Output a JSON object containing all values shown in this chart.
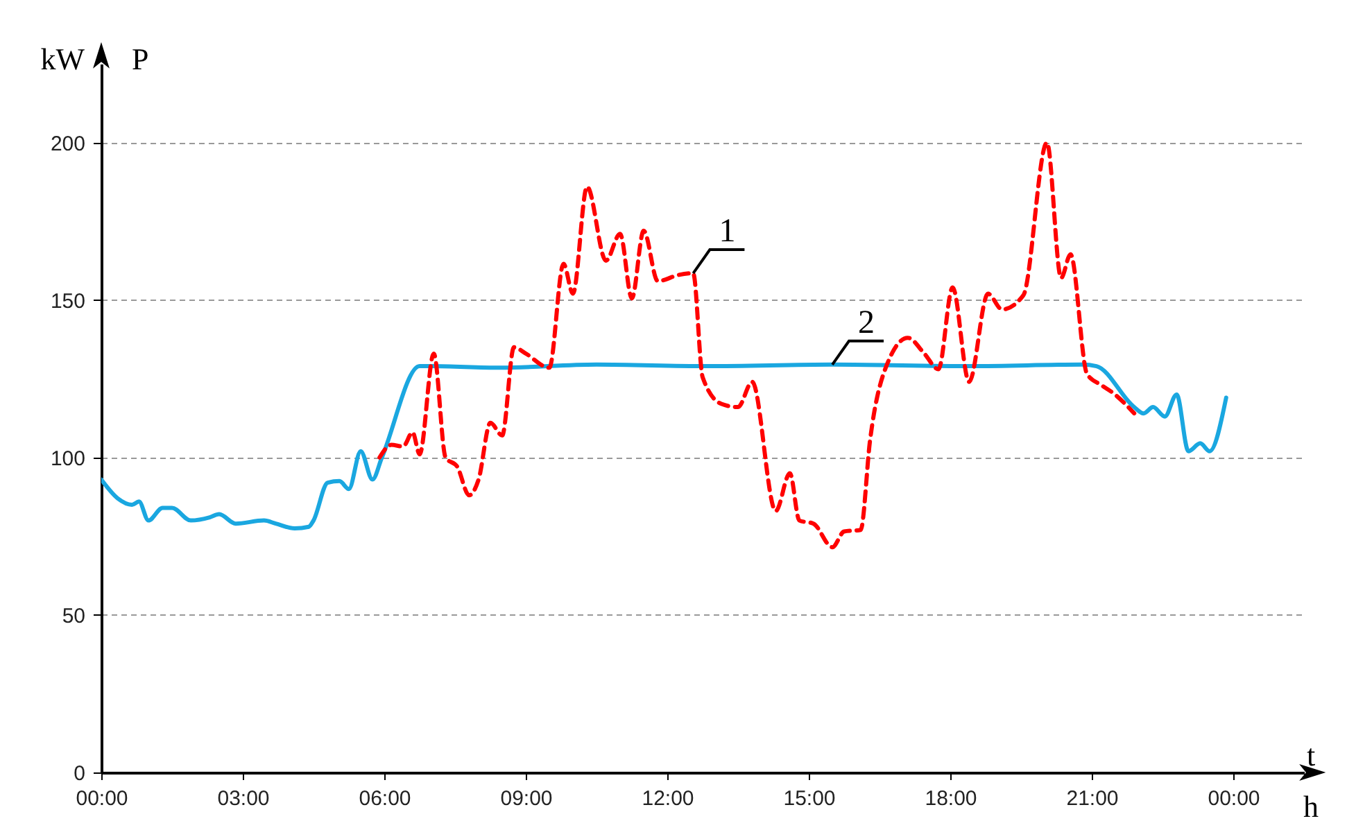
{
  "chart_data": {
    "type": "line",
    "ylabel": "P",
    "xlabel": "t",
    "annotations": [
      "kW",
      "h"
    ],
    "xlim": [
      0,
      25.5
    ],
    "ylim": [
      0,
      225
    ],
    "xticks": [
      {
        "value": 0,
        "label": "00:00"
      },
      {
        "value": 3,
        "label": "03:00"
      },
      {
        "value": 6,
        "label": "06:00"
      },
      {
        "value": 9,
        "label": "09:00"
      },
      {
        "value": 12,
        "label": "12:00"
      },
      {
        "value": 15,
        "label": "15:00"
      },
      {
        "value": 18,
        "label": "18:00"
      },
      {
        "value": 21,
        "label": "21:00"
      },
      {
        "value": 24,
        "label": "00:00"
      }
    ],
    "yticks": [
      0,
      50,
      100,
      150,
      200
    ],
    "grid": "y",
    "series": [
      {
        "name": "2",
        "color": "#1aa7e0",
        "line_style": "solid",
        "x": [
          0,
          0.35,
          0.65,
          0.8,
          1.0,
          1.3,
          1.5,
          1.9,
          2.3,
          2.5,
          2.85,
          3.45,
          3.7,
          4.1,
          4.4,
          4.5,
          4.8,
          5.05,
          5.25,
          5.5,
          5.75,
          5.95,
          6.75,
          7.0,
          8.45,
          10.5,
          12.85,
          15.5,
          18.45,
          20.8,
          21.1,
          21.9,
          22.1,
          22.3,
          22.55,
          22.8,
          23.05,
          23.3,
          23.5,
          23.85
        ],
        "values": [
          93,
          87,
          85,
          86,
          80,
          84,
          84,
          80,
          81,
          82,
          79,
          80,
          79,
          77.5,
          78,
          80,
          92,
          92.5,
          90,
          102,
          93,
          100,
          129,
          129,
          128.5,
          129.5,
          129,
          129.5,
          129,
          129.5,
          129,
          116,
          114,
          116,
          113,
          120,
          102,
          104.5,
          102,
          119
        ]
      },
      {
        "name": "1",
        "color": "#ff0000",
        "line_style": "dashed",
        "x": [
          5.9,
          6.15,
          6.4,
          6.6,
          6.75,
          7.05,
          7.3,
          7.55,
          7.8,
          8.0,
          8.25,
          8.5,
          8.75,
          9.0,
          9.5,
          9.8,
          10.0,
          10.3,
          10.7,
          11.0,
          11.25,
          11.5,
          11.8,
          12.25,
          12.55,
          12.75,
          13.15,
          13.5,
          13.8,
          14.3,
          14.6,
          14.8,
          15.1,
          15.5,
          15.75,
          16.1,
          16.3,
          16.7,
          17.1,
          17.45,
          17.75,
          18.05,
          18.4,
          18.8,
          19.1,
          19.55,
          20.05,
          20.35,
          20.55,
          20.9,
          21.2,
          21.45,
          21.9
        ],
        "values": [
          100,
          104,
          103.5,
          108,
          101,
          133,
          100,
          97,
          88,
          93,
          111,
          107,
          135,
          133,
          128.5,
          161.5,
          152,
          186,
          162.5,
          171,
          150.5,
          172,
          156,
          158,
          158.5,
          125.5,
          117,
          116,
          124,
          83,
          95,
          80,
          79,
          71.5,
          76.5,
          77,
          105.5,
          131,
          138,
          133,
          128,
          154,
          124,
          152,
          147,
          151.5,
          200,
          157,
          164.5,
          126.5,
          123,
          120.5,
          114
        ]
      }
    ]
  }
}
